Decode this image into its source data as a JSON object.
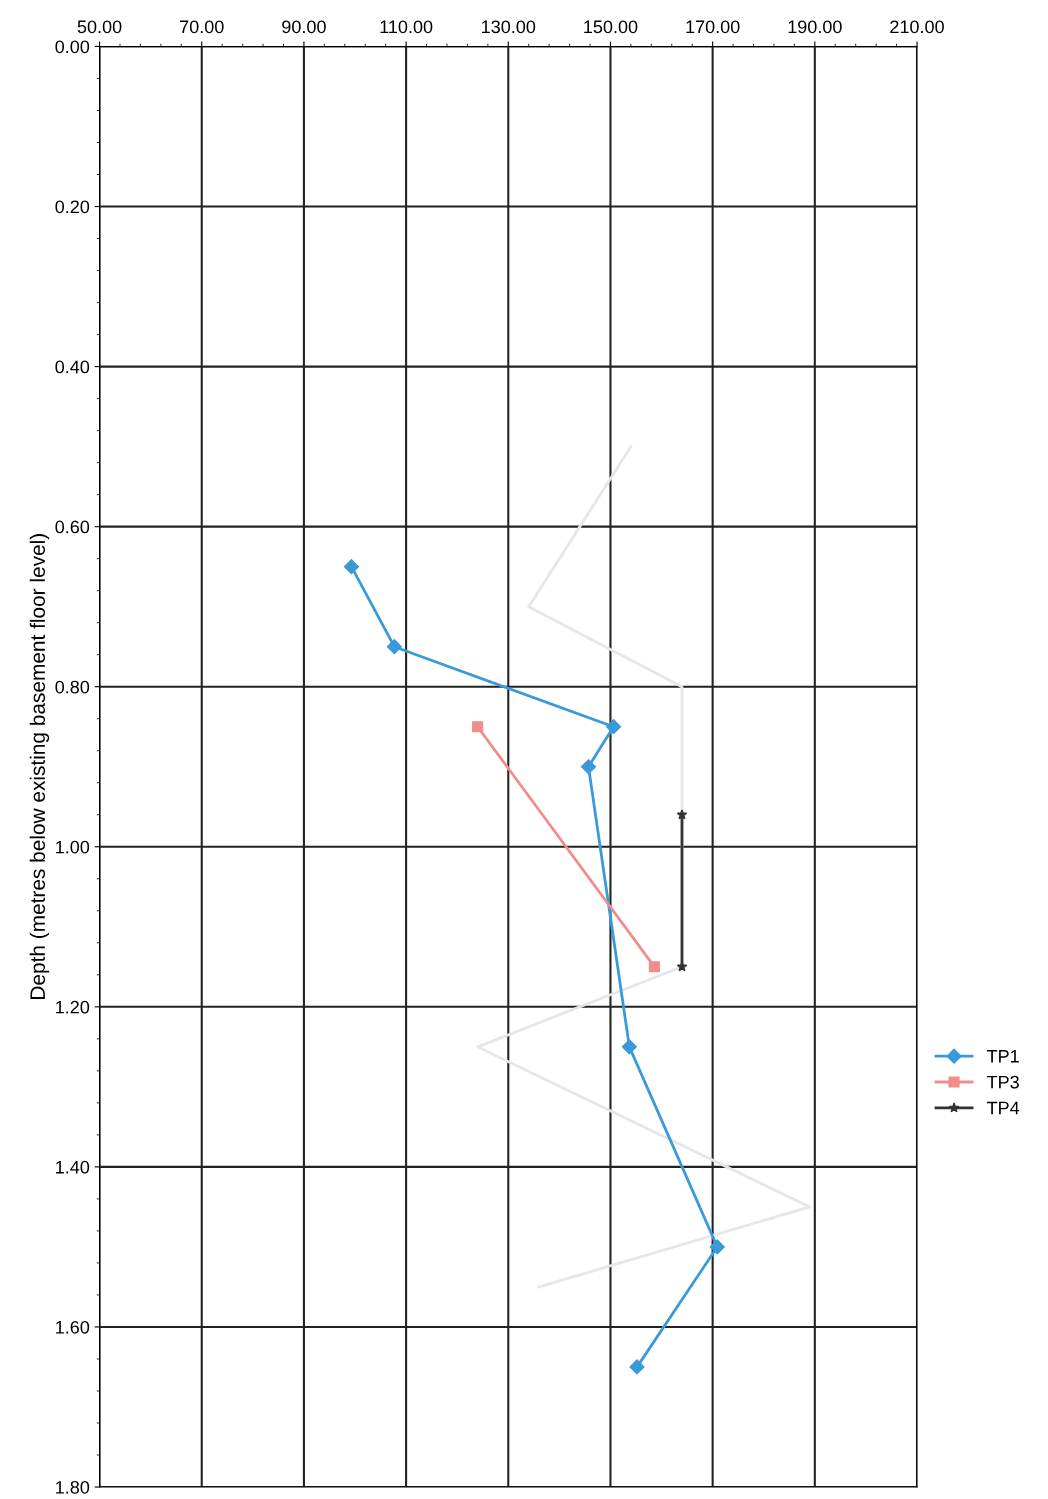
{
  "chart_data": {
    "type": "line",
    "ylabel": "Depth (metres below existing basement floor level)",
    "xlim": [
      50,
      210
    ],
    "xticks": [
      {
        "value": 50,
        "label": "50.00"
      },
      {
        "value": 70,
        "label": "70.00"
      },
      {
        "value": 90,
        "label": "90.00"
      },
      {
        "value": 110,
        "label": "110.00"
      },
      {
        "value": 130,
        "label": "130.00"
      },
      {
        "value": 150,
        "label": "150.00"
      },
      {
        "value": 170,
        "label": "170.00"
      },
      {
        "value": 190,
        "label": "190.00"
      },
      {
        "value": 210,
        "label": "210.00"
      }
    ],
    "ylim": [
      1.8,
      0
    ],
    "yticks": [
      {
        "value": 0,
        "label": "0.00"
      },
      {
        "value": 0.2,
        "label": "0.20"
      },
      {
        "value": 0.4,
        "label": "0.40"
      },
      {
        "value": 0.6,
        "label": "0.60"
      },
      {
        "value": 0.8,
        "label": "0.80"
      },
      {
        "value": 1.0,
        "label": "1.00"
      },
      {
        "value": 1.2,
        "label": "1.20"
      },
      {
        "value": 1.4,
        "label": "1.40"
      },
      {
        "value": 1.6,
        "label": "1.60"
      },
      {
        "value": 1.8,
        "label": "1.80"
      }
    ],
    "grid": true,
    "legend": "right",
    "series": [
      {
        "color": "#e6e6e6",
        "marker": "none",
        "x": [
          154,
          134,
          164,
          164,
          124,
          189,
          136
        ],
        "values": [
          0.5,
          0.7,
          0.8,
          1.15,
          1.25,
          1.45,
          1.55
        ]
      },
      {
        "name": "TP1",
        "color": "#3a9ad9",
        "marker": "diamond",
        "x": [
          99.3,
          107.7,
          150.6,
          145.7,
          153.7,
          170.9,
          155.2
        ],
        "values": [
          0.65,
          0.75,
          0.85,
          0.9,
          1.25,
          1.5,
          1.65
        ]
      },
      {
        "name": "TP3",
        "color": "#f08c8c",
        "marker": "square",
        "x": [
          124,
          158.6
        ],
        "values": [
          0.85,
          1.15
        ]
      },
      {
        "name": "TP4",
        "color": "#333333",
        "marker": "star",
        "x": [
          164,
          164
        ],
        "values": [
          0.96,
          1.15
        ]
      }
    ]
  }
}
